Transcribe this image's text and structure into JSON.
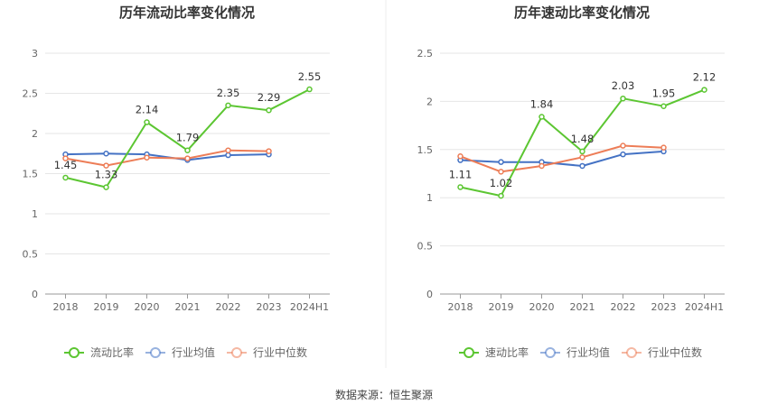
{
  "source_text": "数据来源：恒生聚源",
  "colors": {
    "primary": "#5cc632",
    "industry_avg": "#4472c4",
    "industry_median": "#ed7d57",
    "grid": "#e6e6e6",
    "axis": "#999999"
  },
  "chart_data": [
    {
      "type": "line",
      "title": "历年流动比率变化情况",
      "categories": [
        "2018",
        "2019",
        "2020",
        "2021",
        "2022",
        "2023",
        "2024H1"
      ],
      "ylim": [
        0,
        3
      ],
      "yticks": [
        0,
        0.5,
        1,
        1.5,
        2,
        2.5,
        3
      ],
      "ytick_labels": [
        "0",
        "0.5",
        "1",
        "1.5",
        "2",
        "2.5",
        "3"
      ],
      "legend_position": "bottom",
      "series": [
        {
          "name": "流动比率",
          "values": [
            1.45,
            1.33,
            2.14,
            1.79,
            2.35,
            2.29,
            2.55
          ],
          "labels": [
            "1.45",
            "1.33",
            "2.14",
            "1.79",
            "2.35",
            "2.29",
            "2.55"
          ]
        },
        {
          "name": "行业均值",
          "values": [
            1.74,
            1.75,
            1.74,
            1.67,
            1.73,
            1.74,
            null
          ]
        },
        {
          "name": "行业中位数",
          "values": [
            1.69,
            1.6,
            1.7,
            1.69,
            1.79,
            1.78,
            null
          ]
        }
      ]
    },
    {
      "type": "line",
      "title": "历年速动比率变化情况",
      "categories": [
        "2018",
        "2019",
        "2020",
        "2021",
        "2022",
        "2023",
        "2024H1"
      ],
      "ylim": [
        0,
        2.5
      ],
      "yticks": [
        0,
        0.5,
        1,
        1.5,
        2,
        2.5
      ],
      "ytick_labels": [
        "0",
        "0.5",
        "1",
        "1.5",
        "2",
        "2.5"
      ],
      "legend_position": "bottom",
      "series": [
        {
          "name": "速动比率",
          "values": [
            1.11,
            1.02,
            1.84,
            1.48,
            2.03,
            1.95,
            2.12
          ],
          "labels": [
            "1.11",
            "1.02",
            "1.84",
            "1.48",
            "2.03",
            "1.95",
            "2.12"
          ]
        },
        {
          "name": "行业均值",
          "values": [
            1.39,
            1.37,
            1.37,
            1.33,
            1.45,
            1.48,
            null
          ]
        },
        {
          "name": "行业中位数",
          "values": [
            1.43,
            1.27,
            1.33,
            1.42,
            1.54,
            1.52,
            null
          ]
        }
      ]
    }
  ]
}
